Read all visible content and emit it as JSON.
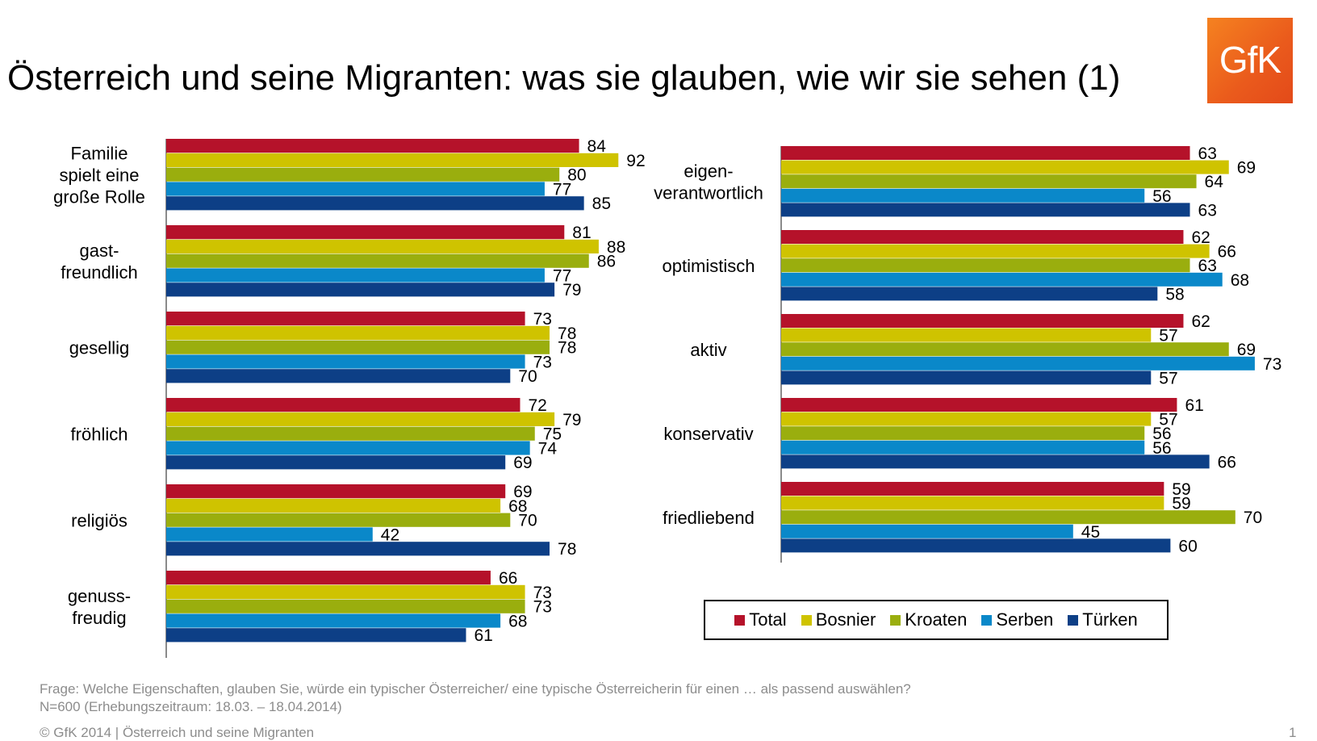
{
  "title": "Österreich und seine Migranten: was sie glauben, wie wir sie sehen (1)",
  "logo_text": "GfK",
  "chart_data": [
    {
      "type": "bar",
      "orientation": "horizontal",
      "categories": [
        [
          "Familie",
          "spielt eine",
          "große Rolle"
        ],
        [
          "gast-",
          "freundlich"
        ],
        [
          "gesellig"
        ],
        [
          "fröhlich"
        ],
        [
          "religiös"
        ],
        [
          "genuss-",
          "freudig"
        ]
      ],
      "series": [
        {
          "name": "Total",
          "color": "#b5122a",
          "values": [
            84,
            81,
            73,
            72,
            69,
            66
          ]
        },
        {
          "name": "Bosnier",
          "color": "#cfc300",
          "values": [
            92,
            88,
            78,
            79,
            68,
            73
          ]
        },
        {
          "name": "Kroaten",
          "color": "#9aae0e",
          "values": [
            80,
            86,
            78,
            75,
            70,
            73
          ]
        },
        {
          "name": "Serben",
          "color": "#0a88c9",
          "values": [
            77,
            77,
            73,
            74,
            42,
            68
          ]
        },
        {
          "name": "Türken",
          "color": "#0d3f86",
          "values": [
            85,
            79,
            70,
            69,
            78,
            61
          ]
        }
      ]
    },
    {
      "type": "bar",
      "orientation": "horizontal",
      "categories": [
        [
          "eigen-",
          "verantwortlich"
        ],
        [
          "optimistisch"
        ],
        [
          "aktiv"
        ],
        [
          "konservativ"
        ],
        [
          "friedliebend"
        ]
      ],
      "series": [
        {
          "name": "Total",
          "color": "#b5122a",
          "values": [
            63,
            62,
            62,
            61,
            59
          ]
        },
        {
          "name": "Bosnier",
          "color": "#cfc300",
          "values": [
            69,
            66,
            57,
            57,
            59
          ]
        },
        {
          "name": "Kroaten",
          "color": "#9aae0e",
          "values": [
            64,
            63,
            69,
            56,
            70
          ]
        },
        {
          "name": "Serben",
          "color": "#0a88c9",
          "values": [
            56,
            68,
            73,
            56,
            45
          ]
        },
        {
          "name": "Türken",
          "color": "#0d3f86",
          "values": [
            63,
            58,
            57,
            66,
            60
          ]
        }
      ]
    }
  ],
  "legend": [
    "Total",
    "Bosnier",
    "Kroaten",
    "Serben",
    "Türken"
  ],
  "footer": {
    "question": "Frage: Welche Eigenschaften, glauben Sie, würde ein typischer Österreicher/ eine typische Österreicherin für einen … als passend auswählen?",
    "sample": "N=600 (Erhebungszeitraum: 18.03. – 18.04.2014)",
    "copyright": "© GfK 2014 | Österreich und seine Migranten",
    "page_number": "1"
  }
}
